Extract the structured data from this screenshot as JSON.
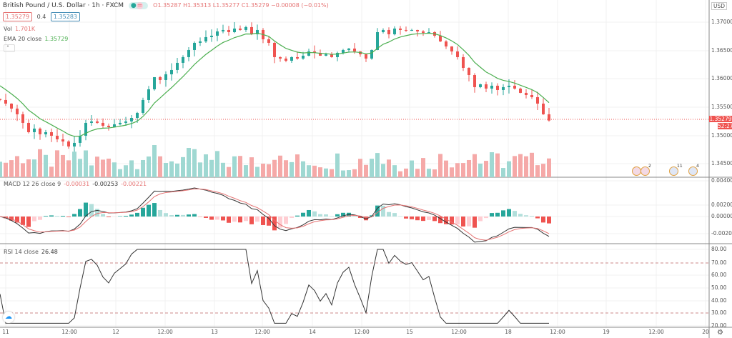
{
  "header": {
    "title": "British Pound / U.S. Dollar · 1h · FXCM",
    "ohlc": "O1.35287 H1.35313 L1.35277 C1.35279 −0.00008 (−0.01%)",
    "bid": "1.35279",
    "spread": "0.4",
    "ask": "1.35283",
    "currency": "USD"
  },
  "indicators": {
    "vol_label": "Vol",
    "vol_value": "1.701K",
    "ema_label": "EMA 20 close",
    "ema_value": "1.35729",
    "macd_label": "MACD 12 26 close 9",
    "macd_v1": "-0.00031",
    "macd_v2": "-0.00253",
    "macd_v3": "-0.00221",
    "rsi_label": "RSI 14 close",
    "rsi_value": "26.48"
  },
  "price_axis": [
    "1.37000",
    "1.36500",
    "1.36000",
    "1.35500",
    "1.35000",
    "1.34500"
  ],
  "macd_axis": [
    "0.00400",
    "0.00200",
    "0.00000",
    "-0.00200"
  ],
  "rsi_axis": [
    "80.00",
    "70.00",
    "60.00",
    "50.00",
    "40.00",
    "30.00",
    "20.00"
  ],
  "time_axis": [
    "11",
    "12:00",
    "12",
    "12:00",
    "13",
    "12:00",
    "14",
    "12:00",
    "15",
    "12:00",
    "18",
    "12:00",
    "19",
    "12:00",
    "20"
  ],
  "last_price": "1.35279",
  "countdown": "52:27",
  "events": [
    {
      "count": ""
    },
    {
      "count": "2"
    },
    {
      "count": "11"
    },
    {
      "count": "4"
    }
  ],
  "colors": {
    "up": "#26a69a",
    "down": "#ef5350",
    "ema": "#4caf50",
    "macd": "#333333",
    "signal": "#e57373"
  },
  "chart_data": {
    "type": "candlestick",
    "closes": [
      1.35638,
      1.35575,
      1.35488,
      1.35388,
      1.35238,
      1.35075,
      1.35138,
      1.35038,
      1.35075,
      1.35013,
      1.3495,
      1.34913,
      1.34825,
      1.34888,
      1.35013,
      1.35238,
      1.35263,
      1.35238,
      1.35188,
      1.35163,
      1.35213,
      1.35238,
      1.35263,
      1.35325,
      1.35413,
      1.35638,
      1.35825,
      1.36038,
      1.35988,
      1.36088,
      1.36163,
      1.36288,
      1.36388,
      1.36513,
      1.36638,
      1.36663,
      1.36738,
      1.36763,
      1.36838,
      1.36863,
      1.36825,
      1.36888,
      1.36863,
      1.36913,
      1.36788,
      1.36863,
      1.367,
      1.36638,
      1.36388,
      1.36363,
      1.36325,
      1.36388,
      1.36363,
      1.36413,
      1.36488,
      1.36463,
      1.36413,
      1.36438,
      1.36388,
      1.36463,
      1.36513,
      1.36538,
      1.36488,
      1.36438,
      1.36363,
      1.36513,
      1.36825,
      1.36863,
      1.36788,
      1.36888,
      1.36863,
      1.3685,
      1.36863,
      1.36838,
      1.36813,
      1.36825,
      1.36763,
      1.36663,
      1.36575,
      1.36488,
      1.36388,
      1.362,
      1.36075,
      1.35863,
      1.35913,
      1.35838,
      1.35888,
      1.35813,
      1.35863,
      1.35888,
      1.35838,
      1.35763,
      1.35725,
      1.35688,
      1.35575,
      1.35388,
      1.35279
    ],
    "ylim": [
      1.343,
      1.3735
    ]
  }
}
